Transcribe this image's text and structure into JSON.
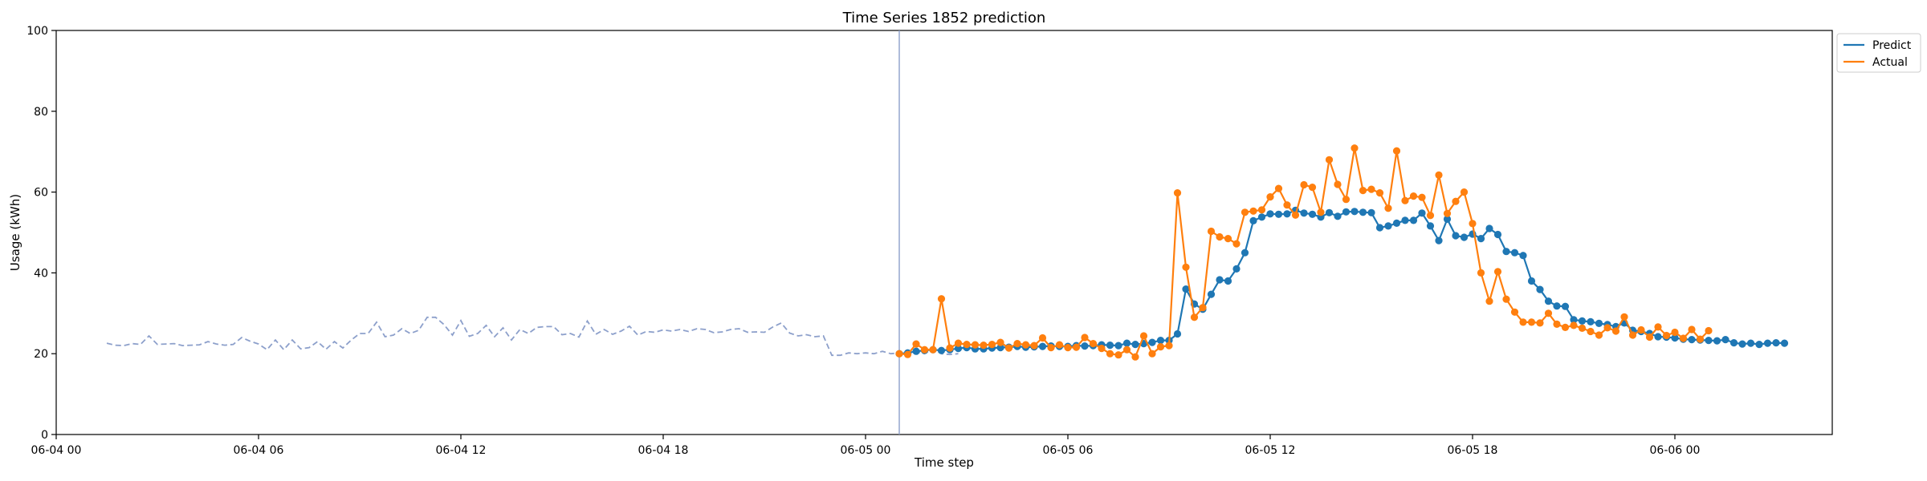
{
  "chart_data": {
    "type": "line",
    "title": "Time Series 1852 prediction",
    "xlabel": "Time step",
    "ylabel": "Usage (kWh)",
    "ylim": [
      0,
      100
    ],
    "x_axis": {
      "type": "datetime",
      "start": "2024-06-04 00:00",
      "end": "2024-06-06 04:40",
      "ticks": [
        {
          "value": "2024-06-04 00:00",
          "label": "06-04 00"
        },
        {
          "value": "2024-06-04 06:00",
          "label": "06-04 06"
        },
        {
          "value": "2024-06-04 12:00",
          "label": "06-04 12"
        },
        {
          "value": "2024-06-04 18:00",
          "label": "06-04 18"
        },
        {
          "value": "2024-06-05 00:00",
          "label": "06-05 00"
        },
        {
          "value": "2024-06-05 06:00",
          "label": "06-05 06"
        },
        {
          "value": "2024-06-05 12:00",
          "label": "06-05 12"
        },
        {
          "value": "2024-06-05 18:00",
          "label": "06-05 18"
        },
        {
          "value": "2024-06-06 00:00",
          "label": "06-06 00"
        }
      ]
    },
    "y_axis": {
      "ticks": [
        0,
        20,
        40,
        60,
        80,
        100
      ]
    },
    "grid": false,
    "legend": {
      "position": "upper-right-outside",
      "entries": [
        "Predict",
        "Actual"
      ]
    },
    "forecast_start": "2024-06-05 01:00",
    "history": {
      "color": "#8da0cb",
      "style": "dashed",
      "start": "2024-06-04 01:30",
      "interval_minutes": 15,
      "values": [
        22.6,
        22.1,
        22.0,
        22.5,
        22.3,
        24.4,
        22.3,
        22.4,
        22.5,
        22.0,
        22.1,
        22.2,
        23.0,
        22.4,
        22.1,
        22.3,
        24.0,
        23.1,
        22.4,
        21.0,
        23.4,
        21.0,
        23.4,
        21.2,
        21.5,
        23.0,
        21.1,
        23.0,
        21.4,
        23.4,
        25.0,
        25.0,
        27.8,
        24.2,
        24.6,
        26.2,
        25.0,
        25.8,
        29.0,
        29.0,
        27.2,
        24.6,
        28.2,
        24.3,
        25.0,
        27.0,
        24.2,
        26.4,
        23.4,
        26.0,
        25.0,
        26.5,
        26.7,
        26.7,
        24.7,
        25.0,
        24.1,
        28.1,
        24.8,
        26.0,
        24.8,
        25.6,
        26.8,
        24.6,
        25.5,
        25.3,
        25.9,
        25.6,
        26.0,
        25.5,
        26.2,
        26.0,
        25.2,
        25.4,
        26.0,
        26.2,
        25.3,
        25.4,
        25.3,
        26.6,
        27.6,
        25.1,
        24.4,
        24.7,
        24.2,
        24.4,
        19.6,
        19.6,
        20.2,
        20.0,
        20.2,
        20.0,
        20.6,
        20.0,
        20.2,
        19.8,
        20.5,
        20.0,
        21.3,
        20.0,
        19.8,
        20.0
      ]
    },
    "series": [
      {
        "name": "Predict",
        "color": "#1f77b4",
        "start": "2024-06-05 01:00",
        "interval_minutes": 15,
        "values": [
          20.0,
          20.2,
          20.6,
          20.8,
          21.0,
          20.8,
          21.0,
          21.3,
          21.5,
          21.2,
          21.2,
          21.4,
          21.5,
          21.6,
          21.8,
          21.6,
          21.7,
          21.8,
          21.9,
          21.8,
          21.8,
          22.0,
          21.9,
          22.0,
          22.2,
          22.1,
          22.0,
          22.6,
          22.3,
          22.5,
          22.8,
          23.3,
          23.3,
          24.9,
          36.0,
          32.3,
          31.0,
          34.7,
          38.3,
          38.0,
          41.0,
          45.0,
          52.9,
          53.8,
          54.6,
          54.5,
          54.6,
          55.5,
          54.8,
          54.5,
          53.8,
          54.9,
          54.0,
          55.1,
          55.2,
          55.0,
          54.9,
          51.2,
          51.6,
          52.3,
          53.0,
          53.0,
          54.8,
          51.6,
          48.0,
          53.3,
          49.2,
          48.8,
          49.6,
          48.5,
          51.0,
          49.5,
          45.3,
          45.0,
          44.3,
          38.0,
          35.9,
          33.0,
          31.8,
          31.7,
          28.4,
          28.1,
          27.9,
          27.5,
          27.2,
          26.7,
          27.6,
          25.8,
          25.5,
          25.0,
          24.2,
          24.1,
          23.9,
          23.6,
          23.5,
          23.4,
          23.3,
          23.2,
          23.5,
          22.7,
          22.4,
          22.6,
          22.3,
          22.6,
          22.7,
          22.6
        ]
      },
      {
        "name": "Actual",
        "color": "#ff7f0e",
        "start": "2024-06-05 01:00",
        "interval_minutes": 15,
        "values": [
          20.0,
          19.8,
          22.4,
          21.0,
          21.0,
          33.6,
          21.4,
          22.6,
          22.3,
          22.2,
          22.1,
          22.3,
          22.8,
          21.4,
          22.5,
          22.2,
          22.0,
          23.9,
          21.5,
          22.2,
          21.5,
          21.6,
          24.0,
          22.5,
          21.3,
          20.0,
          19.7,
          21.0,
          19.2,
          24.4,
          20.0,
          21.7,
          22.0,
          59.8,
          41.4,
          29.0,
          31.4,
          50.3,
          48.9,
          48.5,
          47.2,
          55.0,
          55.3,
          55.6,
          58.8,
          60.9,
          56.8,
          54.3,
          61.8,
          61.2,
          55.0,
          68.0,
          61.9,
          58.2,
          70.9,
          60.4,
          60.7,
          59.8,
          56.0,
          70.2,
          57.9,
          59.0,
          58.7,
          54.2,
          64.2,
          54.7,
          57.7,
          60.0,
          52.2,
          40.0,
          33.0,
          40.3,
          33.5,
          30.3,
          27.8,
          27.8,
          27.6,
          30.0,
          27.3,
          26.5,
          27.0,
          26.3,
          25.5,
          24.6,
          26.4,
          25.6,
          29.1,
          24.6,
          25.9,
          24.1,
          26.6,
          24.5,
          25.3,
          23.8,
          26.0,
          23.6,
          25.7
        ]
      }
    ]
  }
}
